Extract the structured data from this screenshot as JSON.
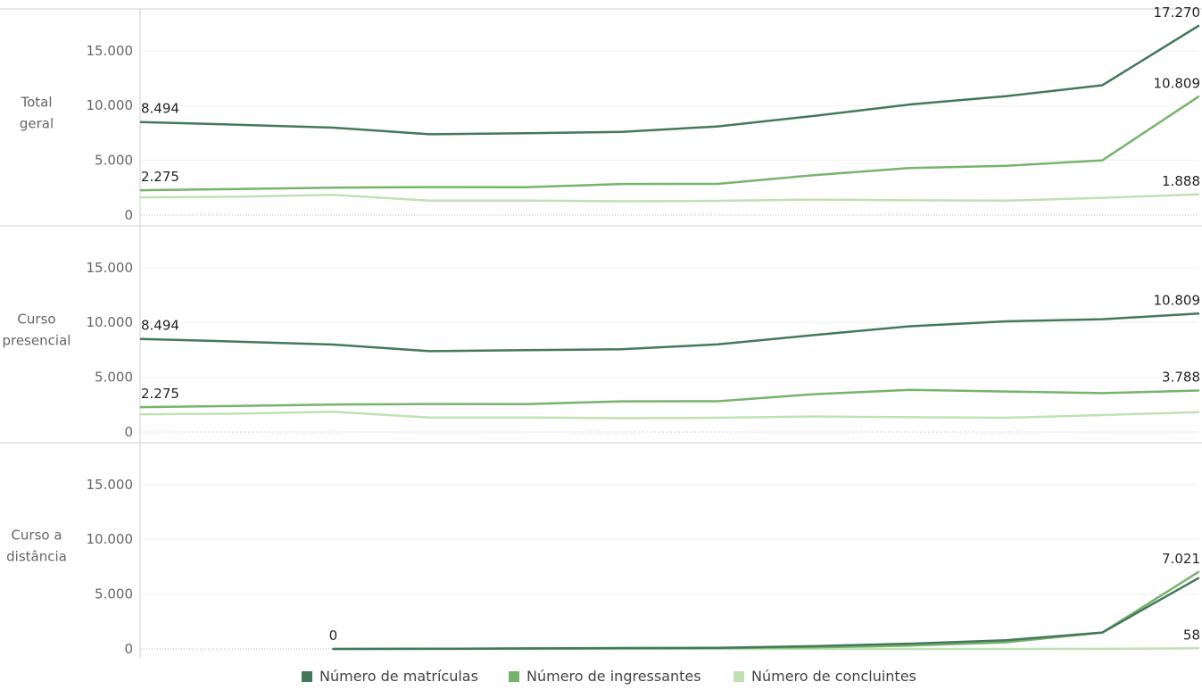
{
  "chart_data": {
    "type": "line",
    "x_count": 12,
    "ylim": [
      0,
      17270
    ],
    "yticks": [
      0,
      5000,
      10000,
      15000
    ],
    "ytick_labels": [
      "0",
      "5.000",
      "10.000",
      "15.000"
    ],
    "colors": {
      "matriculas": "#44785b",
      "ingressantes": "#77b36c",
      "concluintes": "#bfe1b4"
    },
    "legend": [
      {
        "key": "matriculas",
        "label": "Número de matrículas"
      },
      {
        "key": "ingressantes",
        "label": "Número de ingressantes"
      },
      {
        "key": "concluintes",
        "label": "Número de concluintes"
      }
    ],
    "panels": [
      {
        "label_lines": [
          "Total",
          "geral"
        ],
        "series": [
          {
            "key": "matriculas",
            "x_start": 0,
            "values": [
              8494,
              8250,
              7980,
              7380,
              7470,
              7600,
              8100,
              9050,
              10100,
              10850,
              11850,
              17270
            ],
            "labels": [
              {
                "index": 0,
                "text": "8.494"
              },
              {
                "index": 11,
                "text": "17.270"
              }
            ]
          },
          {
            "key": "ingressantes",
            "x_start": 0,
            "values": [
              2275,
              2380,
              2510,
              2560,
              2540,
              2840,
              2850,
              3650,
              4300,
              4500,
              5000,
              10809
            ],
            "labels": [
              {
                "index": 0,
                "text": "2.275"
              },
              {
                "index": 11,
                "text": "10.809"
              }
            ]
          },
          {
            "key": "concluintes",
            "x_start": 0,
            "values": [
              1620,
              1680,
              1850,
              1320,
              1330,
              1260,
              1300,
              1420,
              1350,
              1320,
              1580,
              1888
            ],
            "labels": [
              {
                "index": 11,
                "text": "1.888"
              }
            ]
          }
        ]
      },
      {
        "label_lines": [
          "Curso",
          "presencial"
        ],
        "series": [
          {
            "key": "matriculas",
            "x_start": 0,
            "values": [
              8494,
              8250,
              7980,
              7380,
              7470,
              7550,
              8000,
              8850,
              9650,
              10100,
              10300,
              10809
            ],
            "labels": [
              {
                "index": 0,
                "text": "8.494"
              },
              {
                "index": 11,
                "text": "10.809"
              }
            ]
          },
          {
            "key": "ingressantes",
            "x_start": 0,
            "values": [
              2275,
              2380,
              2510,
              2560,
              2540,
              2800,
              2810,
              3450,
              3850,
              3700,
              3550,
              3788
            ],
            "labels": [
              {
                "index": 0,
                "text": "2.275"
              },
              {
                "index": 11,
                "text": "3.788"
              }
            ]
          },
          {
            "key": "concluintes",
            "x_start": 0,
            "values": [
              1620,
              1680,
              1850,
              1320,
              1330,
              1260,
              1300,
              1420,
              1350,
              1300,
              1550,
              1820
            ],
            "labels": []
          }
        ]
      },
      {
        "label_lines": [
          "Curso a",
          "distância"
        ],
        "series": [
          {
            "key": "matriculas",
            "x_start": 2,
            "values": [
              0,
              20,
              50,
              80,
              100,
              250,
              480,
              800,
              1500,
              6460
            ],
            "labels": [
              {
                "index": 0,
                "text": "0"
              }
            ]
          },
          {
            "key": "ingressantes",
            "x_start": 2,
            "values": [
              0,
              10,
              30,
              60,
              80,
              150,
              300,
              600,
              1500,
              7021
            ],
            "labels": [
              {
                "index": 9,
                "text": "7.021"
              }
            ]
          },
          {
            "key": "concluintes",
            "x_start": 2,
            "values": [
              0,
              0,
              0,
              0,
              0,
              0,
              0,
              0,
              10,
              58
            ],
            "labels": [
              {
                "index": 9,
                "text": "58"
              }
            ]
          }
        ]
      }
    ]
  }
}
